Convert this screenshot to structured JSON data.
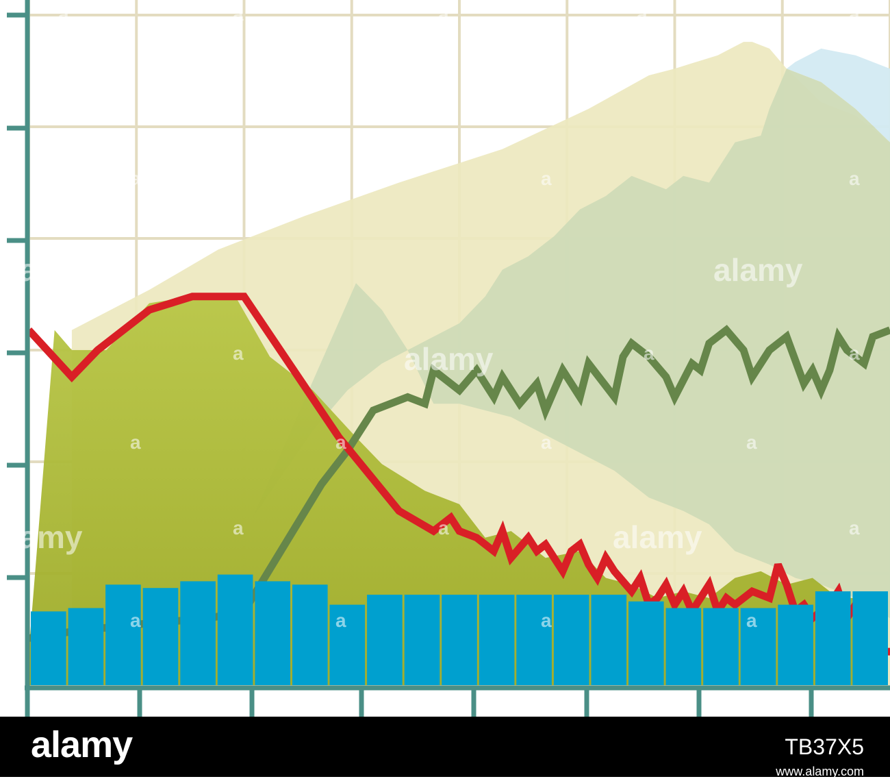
{
  "chart_data": {
    "type": "area",
    "title": "",
    "xlabel": "",
    "ylabel": "",
    "xlim": [
      0,
      100
    ],
    "ylim": [
      0,
      100
    ],
    "grid": true,
    "legend": "none",
    "x_ticks": [
      0,
      12.5,
      25,
      37.5,
      50,
      62.5,
      75,
      87.5,
      100
    ],
    "y_ticks": [
      0,
      16.67,
      33.33,
      50,
      66.67,
      83.33,
      100
    ],
    "colors": {
      "background": "#ffffff",
      "grid": "#e3dcc0",
      "axis": "#4a8f86",
      "tan_area": "#ede8bf",
      "blue_area": "#d3eaf2",
      "sage_area": "#cfdbb7",
      "olive_area_top": "#b8c646",
      "olive_area_bottom": "#9daa27",
      "green_line": "#66864a",
      "red_line": "#d91f26",
      "bars": "#00a0cf"
    },
    "series": [
      {
        "kind": "area",
        "role": "tan_area",
        "points": [
          [
            5,
            53
          ],
          [
            14,
            59
          ],
          [
            22,
            65
          ],
          [
            32,
            70
          ],
          [
            43,
            75
          ],
          [
            55,
            80
          ],
          [
            65,
            86
          ],
          [
            72,
            91
          ],
          [
            75,
            92
          ],
          [
            80,
            94
          ],
          [
            83,
            96
          ],
          [
            84,
            96
          ],
          [
            86,
            95
          ],
          [
            88,
            92
          ],
          [
            92,
            87
          ],
          [
            96,
            85
          ],
          [
            100,
            81
          ]
        ]
      },
      {
        "kind": "area",
        "role": "blue_area",
        "points": [
          [
            88,
            92
          ],
          [
            92,
            90
          ],
          [
            96,
            86
          ],
          [
            100,
            81
          ],
          [
            100,
            92
          ],
          [
            96,
            94
          ],
          [
            92,
            95
          ],
          [
            89,
            93
          ]
        ]
      },
      {
        "kind": "area",
        "role": "sage_area",
        "points": [
          [
            26,
            25
          ],
          [
            33,
            38
          ],
          [
            37,
            44
          ],
          [
            41,
            48
          ],
          [
            44,
            50
          ],
          [
            47,
            52
          ],
          [
            50,
            54
          ],
          [
            53,
            58
          ],
          [
            55,
            62
          ],
          [
            58,
            64
          ],
          [
            61,
            67
          ],
          [
            64,
            71
          ],
          [
            67,
            73
          ],
          [
            70,
            76
          ],
          [
            72,
            75
          ],
          [
            74,
            74
          ],
          [
            76,
            76
          ],
          [
            79,
            75
          ],
          [
            82,
            81
          ],
          [
            85,
            82
          ],
          [
            86,
            86
          ],
          [
            88,
            92
          ],
          [
            92,
            90
          ],
          [
            96,
            86
          ],
          [
            100,
            81
          ],
          [
            100,
            10
          ],
          [
            96,
            13
          ],
          [
            92,
            15
          ],
          [
            89,
            16
          ],
          [
            86,
            18
          ],
          [
            82,
            20
          ],
          [
            79,
            24
          ],
          [
            76,
            26
          ],
          [
            72,
            28
          ],
          [
            68,
            32
          ],
          [
            62,
            36
          ],
          [
            56,
            40
          ],
          [
            50,
            42
          ],
          [
            47,
            42
          ],
          [
            44,
            50
          ],
          [
            41,
            56
          ],
          [
            38,
            60
          ]
        ]
      },
      {
        "kind": "area",
        "role": "olive_area",
        "points": [
          [
            0,
            5
          ],
          [
            3,
            53
          ],
          [
            5,
            50
          ],
          [
            9,
            50
          ],
          [
            14,
            57
          ],
          [
            19,
            58
          ],
          [
            24,
            58
          ],
          [
            28,
            49
          ],
          [
            33,
            44
          ],
          [
            38,
            37
          ],
          [
            41,
            33
          ],
          [
            46,
            29
          ],
          [
            50,
            27
          ],
          [
            53,
            22
          ],
          [
            56,
            23
          ],
          [
            60,
            19
          ],
          [
            64,
            20
          ],
          [
            67,
            16
          ],
          [
            70,
            15
          ],
          [
            73,
            13
          ],
          [
            76,
            14
          ],
          [
            79,
            13
          ],
          [
            82,
            16
          ],
          [
            85,
            17
          ],
          [
            88,
            15
          ],
          [
            91,
            16
          ],
          [
            94,
            13
          ],
          [
            96,
            13
          ],
          [
            97,
            5
          ]
        ]
      },
      {
        "kind": "line",
        "role": "green_line",
        "points": [
          [
            0,
            7
          ],
          [
            5,
            8
          ],
          [
            12,
            9
          ],
          [
            21,
            10
          ],
          [
            25,
            11
          ],
          [
            34,
            30
          ],
          [
            37,
            35
          ],
          [
            40,
            41
          ],
          [
            44,
            43
          ],
          [
            46,
            42
          ],
          [
            47,
            47
          ],
          [
            50,
            44
          ],
          [
            52,
            47
          ],
          [
            54,
            43
          ],
          [
            55,
            46
          ],
          [
            57,
            42
          ],
          [
            59,
            45
          ],
          [
            60,
            41
          ],
          [
            62,
            47
          ],
          [
            64,
            43
          ],
          [
            65,
            48
          ],
          [
            68,
            43
          ],
          [
            69,
            49
          ],
          [
            70,
            51
          ],
          [
            72,
            49
          ],
          [
            74,
            46
          ],
          [
            75,
            43
          ],
          [
            77,
            48
          ],
          [
            78,
            47
          ],
          [
            79,
            51
          ],
          [
            81,
            53
          ],
          [
            83,
            50
          ],
          [
            84,
            46
          ],
          [
            86,
            50
          ],
          [
            88,
            52
          ],
          [
            90,
            45
          ],
          [
            91,
            47
          ],
          [
            92,
            44
          ],
          [
            93,
            47
          ],
          [
            94,
            52
          ],
          [
            95,
            50
          ],
          [
            97,
            48
          ],
          [
            98,
            52
          ],
          [
            100,
            53
          ]
        ]
      },
      {
        "kind": "line",
        "role": "red_line",
        "points": [
          [
            0,
            53
          ],
          [
            5,
            46
          ],
          [
            8,
            50
          ],
          [
            14,
            56
          ],
          [
            19,
            58
          ],
          [
            25,
            58
          ],
          [
            36,
            37
          ],
          [
            43,
            26
          ],
          [
            47,
            23
          ],
          [
            49,
            25
          ],
          [
            50,
            23
          ],
          [
            52,
            22
          ],
          [
            54,
            20
          ],
          [
            55,
            23
          ],
          [
            56,
            19
          ],
          [
            58,
            22
          ],
          [
            59,
            20
          ],
          [
            60,
            21
          ],
          [
            62,
            17
          ],
          [
            63,
            20
          ],
          [
            64,
            21
          ],
          [
            65,
            18
          ],
          [
            66,
            16
          ],
          [
            67,
            19
          ],
          [
            68,
            17
          ],
          [
            70,
            14
          ],
          [
            71,
            16
          ],
          [
            72,
            12
          ],
          [
            73,
            13
          ],
          [
            74,
            15
          ],
          [
            75,
            12
          ],
          [
            76,
            14
          ],
          [
            77,
            11
          ],
          [
            78,
            13
          ],
          [
            79,
            15
          ],
          [
            80,
            11
          ],
          [
            81,
            13
          ],
          [
            82,
            12
          ],
          [
            84,
            14
          ],
          [
            86,
            13
          ],
          [
            87,
            18
          ],
          [
            88,
            15
          ],
          [
            89,
            11
          ],
          [
            90,
            12
          ],
          [
            91,
            10
          ],
          [
            93,
            12
          ],
          [
            94,
            14
          ],
          [
            95,
            10
          ],
          [
            96,
            12
          ],
          [
            97,
            9
          ],
          [
            97.5,
            5
          ],
          [
            100,
            5
          ]
        ]
      }
    ],
    "bars": {
      "values": [
        11,
        11.5,
        15,
        14.5,
        15.5,
        16.5,
        15.5,
        15,
        12,
        13.5,
        13.5,
        13.5,
        13.5,
        13.5,
        13.5,
        13.5,
        12.5,
        11.5,
        11.5,
        11.5,
        12,
        14,
        14
      ]
    }
  },
  "watermark": {
    "brand": "alamy",
    "small_mark": "a",
    "image_id": "TB37X5",
    "url": "www.alamy.com"
  }
}
